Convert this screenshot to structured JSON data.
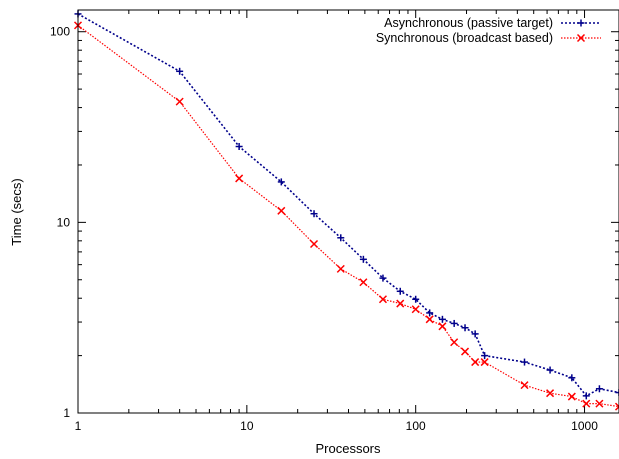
{
  "chart_data": {
    "type": "line",
    "title": "",
    "xlabel": "Processors",
    "ylabel": "Time (secs)",
    "xscale": "log",
    "yscale": "log",
    "xlim": [
      1,
      1600
    ],
    "ylim": [
      1,
      130
    ],
    "grid": false,
    "legend_position": "top-right",
    "x_ticks": [
      {
        "value": 1,
        "label": "1"
      },
      {
        "value": 10,
        "label": "10"
      },
      {
        "value": 100,
        "label": "100"
      },
      {
        "value": 1000,
        "label": "1000"
      }
    ],
    "y_ticks": [
      {
        "value": 1,
        "label": "1"
      },
      {
        "value": 10,
        "label": "10"
      },
      {
        "value": 100,
        "label": "100"
      }
    ],
    "series": [
      {
        "name": "Asynchronous (passive target)",
        "color": "#00008b",
        "marker": "plus",
        "points": [
          [
            1,
            124
          ],
          [
            4,
            62
          ],
          [
            9,
            25
          ],
          [
            16,
            16.3
          ],
          [
            25,
            11.1
          ],
          [
            36,
            8.3
          ],
          [
            49,
            6.4
          ],
          [
            64,
            5.1
          ],
          [
            81,
            4.35
          ],
          [
            100,
            3.95
          ],
          [
            121,
            3.35
          ],
          [
            144,
            3.1
          ],
          [
            169,
            2.95
          ],
          [
            196,
            2.8
          ],
          [
            225,
            2.6
          ],
          [
            256,
            2.0
          ],
          [
            441,
            1.85
          ],
          [
            625,
            1.68
          ],
          [
            841,
            1.53
          ],
          [
            1024,
            1.23
          ],
          [
            1225,
            1.34
          ],
          [
            1600,
            1.28
          ]
        ]
      },
      {
        "name": "Synchronous (broadcast based)",
        "color": "#ff0000",
        "marker": "x",
        "points": [
          [
            1,
            108
          ],
          [
            4,
            43
          ],
          [
            9,
            17
          ],
          [
            16,
            11.5
          ],
          [
            25,
            7.7
          ],
          [
            36,
            5.7
          ],
          [
            49,
            4.85
          ],
          [
            64,
            3.95
          ],
          [
            81,
            3.75
          ],
          [
            100,
            3.5
          ],
          [
            121,
            3.1
          ],
          [
            144,
            2.85
          ],
          [
            169,
            2.35
          ],
          [
            196,
            2.1
          ],
          [
            225,
            1.85
          ],
          [
            256,
            1.85
          ],
          [
            441,
            1.4
          ],
          [
            625,
            1.27
          ],
          [
            841,
            1.22
          ],
          [
            1024,
            1.12
          ],
          [
            1225,
            1.12
          ],
          [
            1600,
            1.08
          ]
        ]
      }
    ]
  }
}
